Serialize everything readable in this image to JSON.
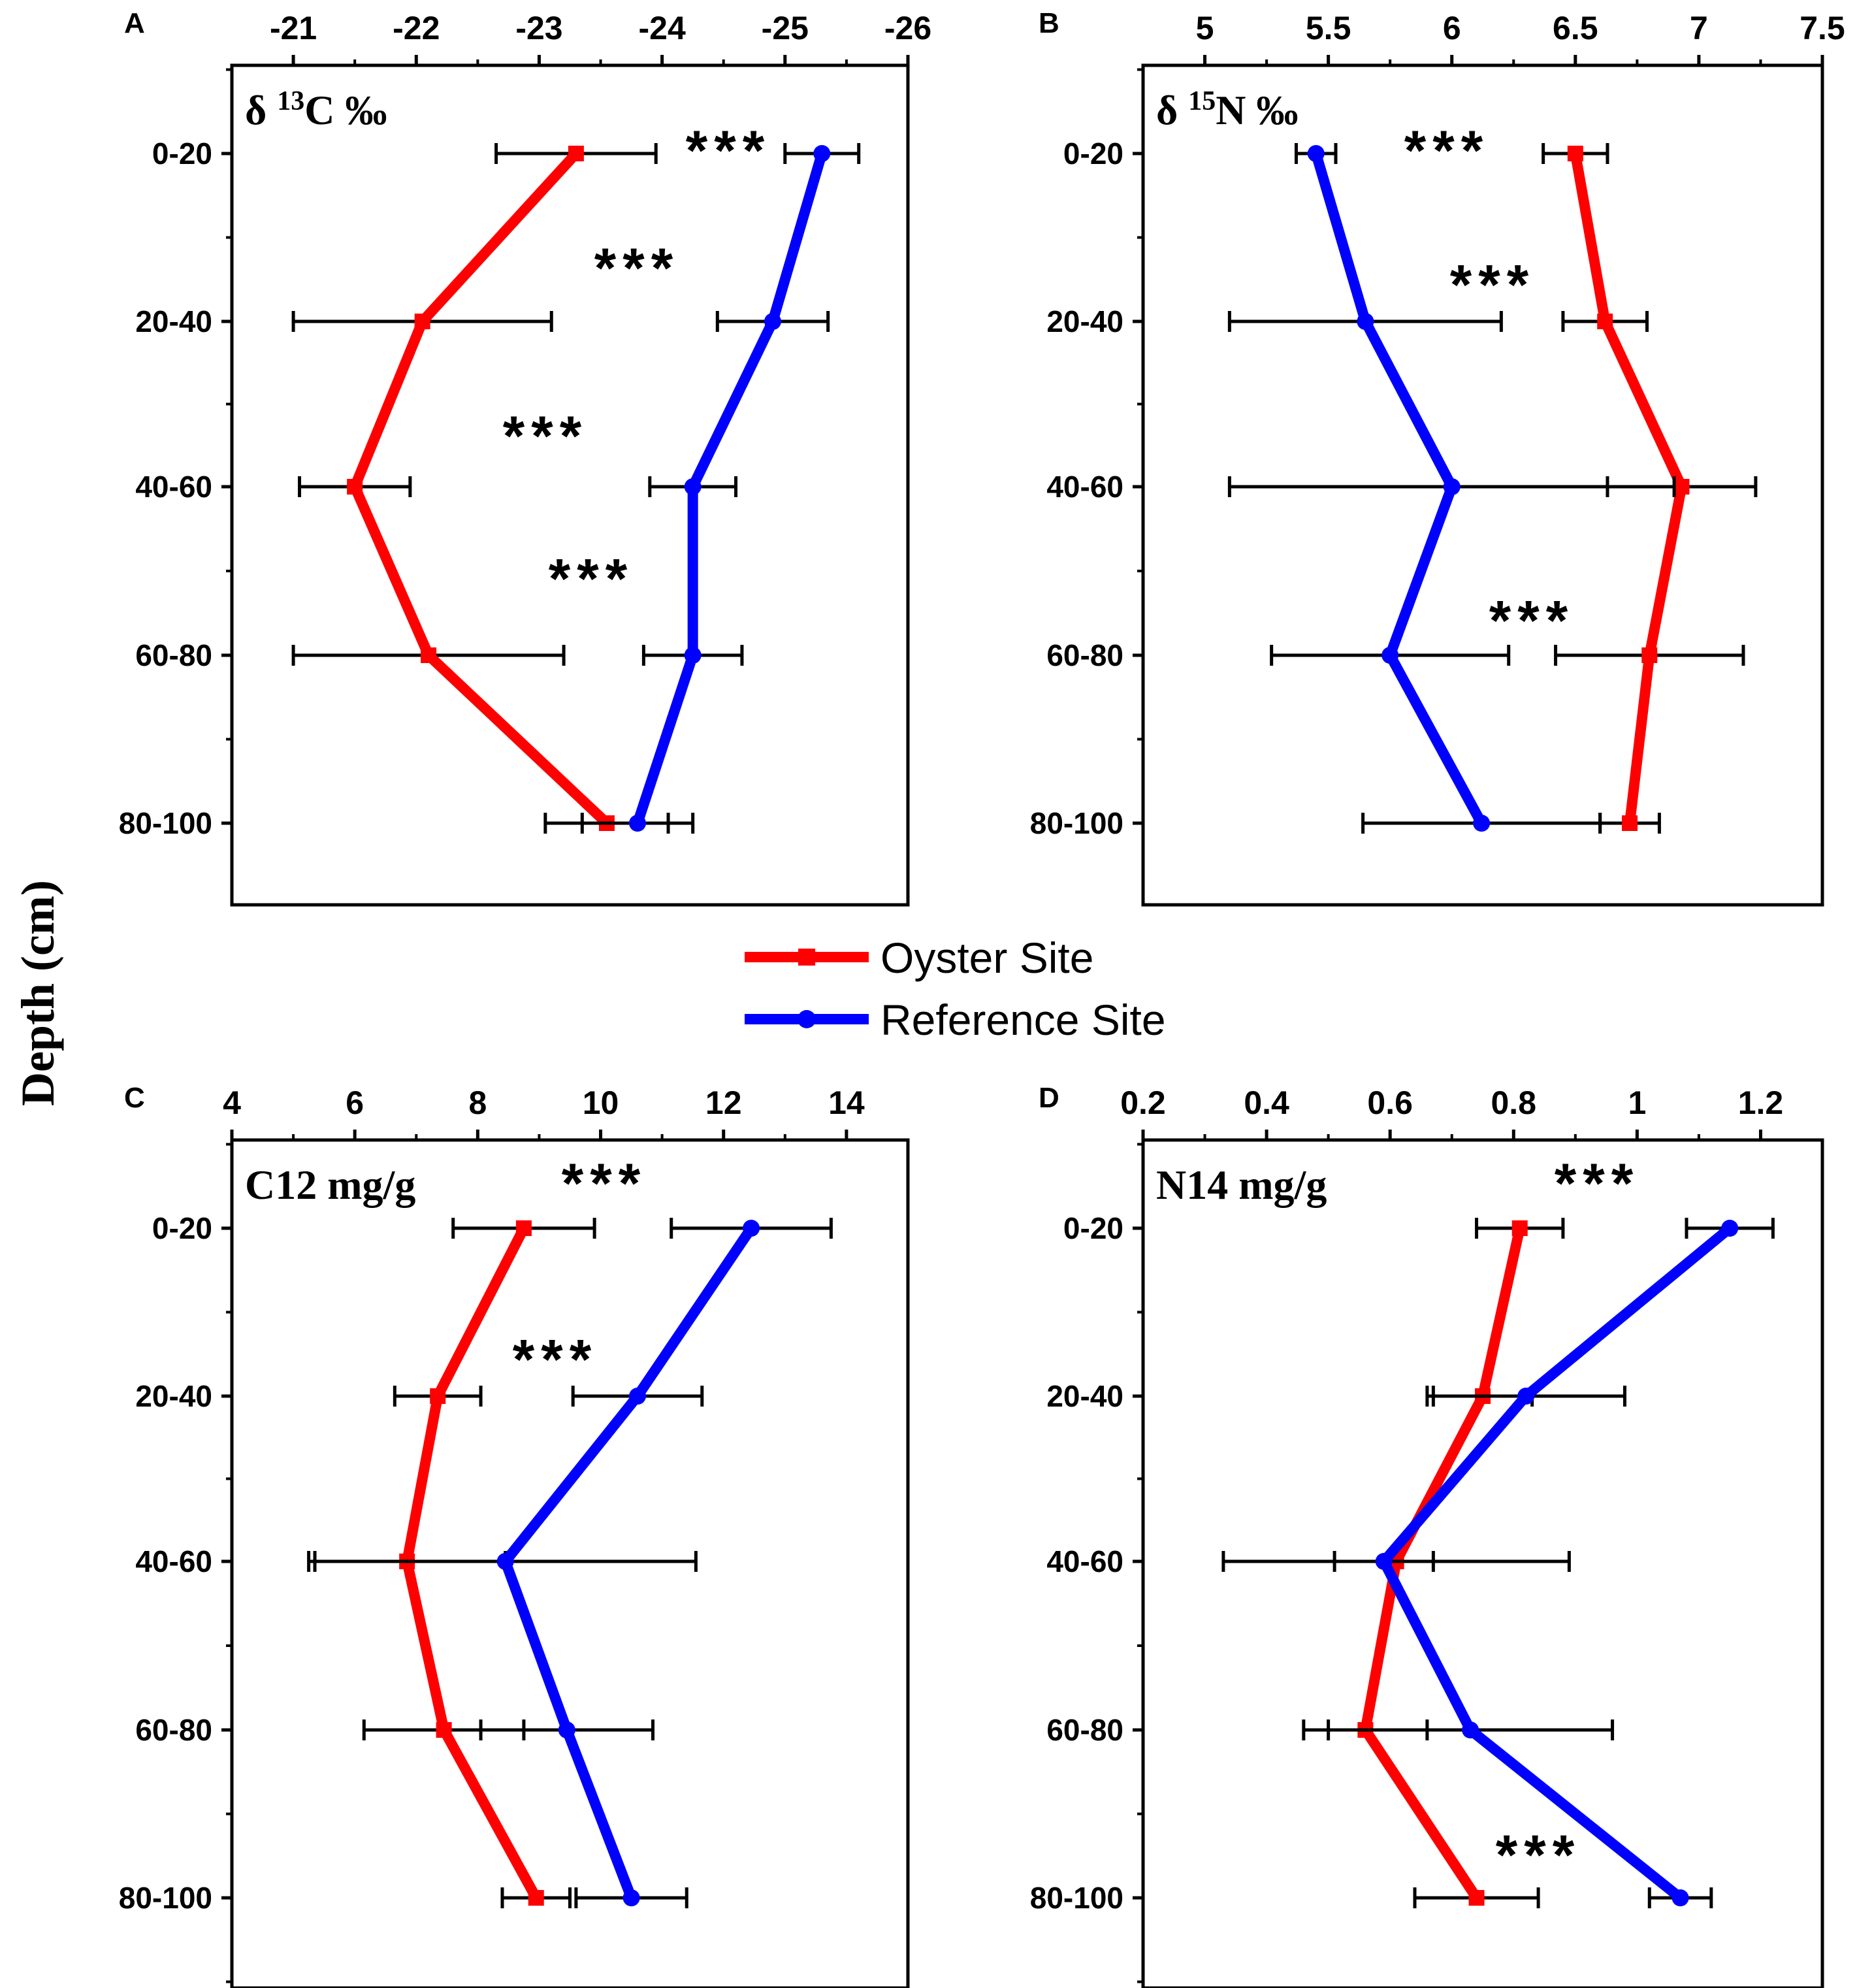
{
  "figure": {
    "ylabel": "Depth (cm)",
    "colors": {
      "oyster": "#ff0000",
      "reference": "#0000ff",
      "axis": "#000000"
    }
  },
  "legend": {
    "entries": [
      {
        "label": "Oyster Site",
        "color": "#ff0000",
        "marker": "square"
      },
      {
        "label": "Reference Site",
        "color": "#0000ff",
        "marker": "circle"
      }
    ]
  },
  "chart_data": [
    {
      "panel": "A",
      "type": "line",
      "title_main": "δ ",
      "title_sup": "13",
      "title_rest": "C ‰",
      "categories": [
        "0-20",
        "20-40",
        "40-60",
        "60-80",
        "80-100"
      ],
      "xlim": [
        -20.5,
        -26
      ],
      "xticks": [
        -21,
        -22,
        -23,
        -24,
        -25,
        -26
      ],
      "series": [
        {
          "name": "Oyster Site",
          "values": [
            -23.3,
            -22.05,
            -21.5,
            -22.1,
            -23.55
          ],
          "err": [
            0.65,
            1.05,
            0.45,
            1.1,
            0.5
          ]
        },
        {
          "name": "Reference Site",
          "values": [
            -25.3,
            -24.9,
            -24.25,
            -24.25,
            -23.8
          ],
          "err": [
            0.3,
            0.45,
            0.35,
            0.4,
            0.45
          ]
        }
      ],
      "significance": [
        {
          "between": "0-20",
          "label": "***",
          "pos": 0
        },
        {
          "between": "0-20/20-40",
          "label": "***",
          "pos": 0.7
        },
        {
          "between": "20-40/40-60",
          "label": "***",
          "pos": 1.7
        },
        {
          "between": "40-60/60-80",
          "label": "***",
          "pos": 2.55
        }
      ]
    },
    {
      "panel": "B",
      "type": "line",
      "title_main": "δ ",
      "title_sup": "15",
      "title_rest": "N ‰",
      "categories": [
        "0-20",
        "20-40",
        "40-60",
        "60-80",
        "80-100"
      ],
      "xlim": [
        4.75,
        7.5
      ],
      "xticks": [
        5.0,
        5.5,
        6.0,
        6.5,
        7.0,
        7.5
      ],
      "series": [
        {
          "name": "Oyster Site",
          "values": [
            6.5,
            6.62,
            6.93,
            6.8,
            6.72
          ],
          "err": [
            0.13,
            0.17,
            0.3,
            0.38,
            0.12
          ]
        },
        {
          "name": "Reference Site",
          "values": [
            5.45,
            5.65,
            6.0,
            5.75,
            6.12
          ],
          "err": [
            0.08,
            0.55,
            0.9,
            0.48,
            0.48
          ]
        }
      ],
      "significance": [
        {
          "between": "0-20",
          "label": "***",
          "pos": 0
        },
        {
          "between": "0-20/20-40",
          "label": "***",
          "pos": 0.8
        },
        {
          "between": "60-80",
          "label": "***",
          "pos": 2.8
        }
      ]
    },
    {
      "panel": "C",
      "type": "line",
      "title_main": "C12 mg/g",
      "title_sup": "",
      "title_rest": "",
      "categories": [
        "0-20",
        "20-40",
        "40-60",
        "60-80",
        "80-100"
      ],
      "xlim": [
        4,
        15
      ],
      "xticks": [
        4,
        6,
        8,
        10,
        12,
        14
      ],
      "series": [
        {
          "name": "Oyster Site",
          "values": [
            8.75,
            7.35,
            6.85,
            7.45,
            8.95
          ],
          "err": [
            1.15,
            0.7,
            1.6,
            1.3,
            0.55
          ]
        },
        {
          "name": "Reference Site",
          "values": [
            12.45,
            10.6,
            8.45,
            9.45,
            10.5
          ],
          "err": [
            1.3,
            1.05,
            3.1,
            1.4,
            0.9
          ]
        }
      ],
      "significance": [
        {
          "between": "0-20",
          "label": "***",
          "pos": -0.25
        },
        {
          "between": "20-40",
          "label": "***",
          "pos": 0.8
        }
      ]
    },
    {
      "panel": "D",
      "type": "line",
      "title_main": "N14 mg/g",
      "title_sup": "",
      "title_rest": "",
      "categories": [
        "0-20",
        "20-40",
        "40-60",
        "60-80",
        "80-100"
      ],
      "xlim": [
        0.2,
        1.3
      ],
      "xticks": [
        0.2,
        0.4,
        0.6,
        0.8,
        1.0,
        1.2
      ],
      "series": [
        {
          "name": "Oyster Site",
          "values": [
            0.81,
            0.75,
            0.61,
            0.56,
            0.74
          ],
          "err": [
            0.07,
            0.08,
            0.28,
            0.1,
            0.1
          ]
        },
        {
          "name": "Reference Site",
          "values": [
            1.15,
            0.82,
            0.59,
            0.73,
            1.07
          ],
          "err": [
            0.07,
            0.16,
            0.08,
            0.23,
            0.05
          ]
        }
      ],
      "significance": [
        {
          "between": "0-20",
          "label": "***",
          "pos": -0.25
        },
        {
          "between": "80-100",
          "label": "***",
          "pos": 3.75
        }
      ]
    }
  ]
}
